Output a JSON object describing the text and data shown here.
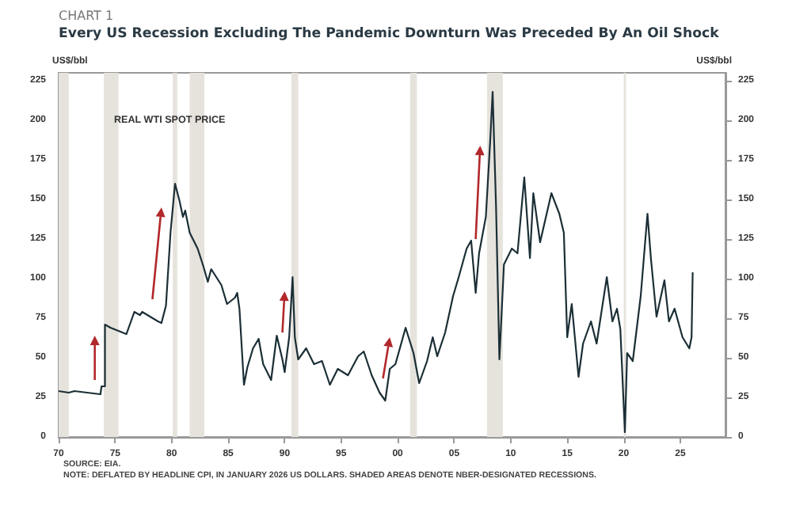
{
  "chart_data": {
    "type": "line",
    "subtitle": "CHART 1",
    "title": "Every US Recession Excluding The Pandemic Downturn Was Preceded By An Oil Shock",
    "ylabel": "US$/bbl",
    "y2label": "US$/bbl",
    "annotations": [
      "REAL WTI SPOT PRICE",
      "SOURCE: EIA.",
      "NOTE: DEFLATED BY HEADLINE CPI, IN JANUARY 2026 US DOLLARS. SHADED AREAS DENOTE NBER-DESIGNATED RECESSIONS."
    ],
    "series": [
      {
        "color": "#1b2f36",
        "x": [
          1970.0,
          1970.9,
          1971.4,
          1973.7,
          1973.8,
          1974.1,
          1974.1,
          1974.6,
          1976.0,
          1976.7,
          1977.2,
          1977.4,
          1978.8,
          1979.1,
          1979.5,
          1979.9,
          1980.3,
          1980.7,
          1981.0,
          1981.2,
          1981.6,
          1982.3,
          1982.8,
          1983.2,
          1983.5,
          1984.4,
          1984.9,
          1985.6,
          1985.8,
          1986.0,
          1986.4,
          1986.7,
          1987.2,
          1987.7,
          1988.1,
          1988.8,
          1989.3,
          1989.8,
          1990.0,
          1990.4,
          1990.7,
          1990.9,
          1991.2,
          1991.9,
          1992.6,
          1993.3,
          1994.0,
          1994.7,
          1995.6,
          1996.5,
          1997.0,
          1997.7,
          1998.4,
          1998.9,
          1999.3,
          1999.8,
          2000.7,
          2001.4,
          2001.9,
          2002.6,
          2003.1,
          2003.5,
          2004.2,
          2004.9,
          2005.4,
          2006.1,
          2006.5,
          2006.9,
          2007.2,
          2007.8,
          2008.2,
          2008.4,
          2008.7,
          2009.0,
          2009.4,
          2010.1,
          2010.6,
          2011.2,
          2011.7,
          2012.0,
          2012.6,
          2013.6,
          2014.3,
          2014.7,
          2015.0,
          2015.4,
          2016.0,
          2016.4,
          2017.1,
          2017.6,
          2018.5,
          2019.0,
          2019.4,
          2019.7,
          2020.1,
          2020.3,
          2020.8,
          2021.5,
          2022.1,
          2022.4,
          2022.9,
          2023.6,
          2024.0,
          2024.5,
          2025.2,
          2025.8,
          2026.0,
          2026.1
        ],
        "values": [
          29,
          28,
          29,
          27,
          32,
          32,
          71,
          69,
          65,
          79,
          77,
          79,
          73,
          72,
          83,
          129,
          160,
          149,
          139,
          143,
          129,
          119,
          108,
          98,
          106,
          96,
          84,
          88,
          91,
          81,
          33,
          44,
          56,
          62,
          46,
          36,
          64,
          49,
          41,
          63,
          101,
          63,
          49,
          56,
          46,
          48,
          33,
          43,
          39,
          51,
          54,
          39,
          28,
          23,
          43,
          46,
          69,
          53,
          34,
          48,
          63,
          51,
          66,
          89,
          101,
          119,
          124,
          91,
          116,
          139,
          189,
          218,
          146,
          49,
          109,
          119,
          116,
          164,
          113,
          154,
          123,
          154,
          141,
          129,
          63,
          84,
          38,
          59,
          73,
          59,
          101,
          73,
          81,
          68,
          3,
          53,
          48,
          89,
          141,
          113,
          76,
          99,
          73,
          81,
          63,
          56,
          63,
          104
        ]
      }
    ],
    "xlim": [
      1970,
      2029
    ],
    "xticks": [
      {
        "value": 1970,
        "label": "70"
      },
      {
        "value": 1975,
        "label": "75"
      },
      {
        "value": 1980,
        "label": "80"
      },
      {
        "value": 1985,
        "label": "85"
      },
      {
        "value": 1990,
        "label": "90"
      },
      {
        "value": 1995,
        "label": "95"
      },
      {
        "value": 2000,
        "label": "00"
      },
      {
        "value": 2005,
        "label": "05"
      },
      {
        "value": 2010,
        "label": "10"
      },
      {
        "value": 2015,
        "label": "15"
      },
      {
        "value": 2020,
        "label": "20"
      },
      {
        "value": 2025,
        "label": "25"
      }
    ],
    "ylim": [
      0,
      230
    ],
    "yticks": [
      0,
      25,
      50,
      75,
      100,
      125,
      150,
      175,
      200,
      225
    ],
    "y2lim": [
      0,
      230
    ],
    "y2ticks": [
      0,
      25,
      50,
      75,
      100,
      125,
      150,
      175,
      200,
      225
    ],
    "bands": [
      {
        "axis": "x",
        "from": 1970.0,
        "to": 1970.9,
        "color": "#e6e2dc"
      },
      {
        "axis": "x",
        "from": 1974.0,
        "to": 1975.3,
        "color": "#e6e2dc"
      },
      {
        "axis": "x",
        "from": 1980.1,
        "to": 1980.5,
        "color": "#e6e2dc"
      },
      {
        "axis": "x",
        "from": 1981.6,
        "to": 1982.9,
        "color": "#e6e2dc"
      },
      {
        "axis": "x",
        "from": 1990.6,
        "to": 1991.2,
        "color": "#e6e2dc"
      },
      {
        "axis": "x",
        "from": 2001.1,
        "to": 2001.7,
        "color": "#e6e2dc"
      },
      {
        "axis": "x",
        "from": 2007.9,
        "to": 2009.3,
        "color": "#e6e2dc"
      },
      {
        "axis": "x",
        "from": 2020.0,
        "to": 2020.2,
        "color": "#e6e2dc"
      }
    ],
    "grid": false,
    "marker": "none",
    "line_style": "solid"
  }
}
